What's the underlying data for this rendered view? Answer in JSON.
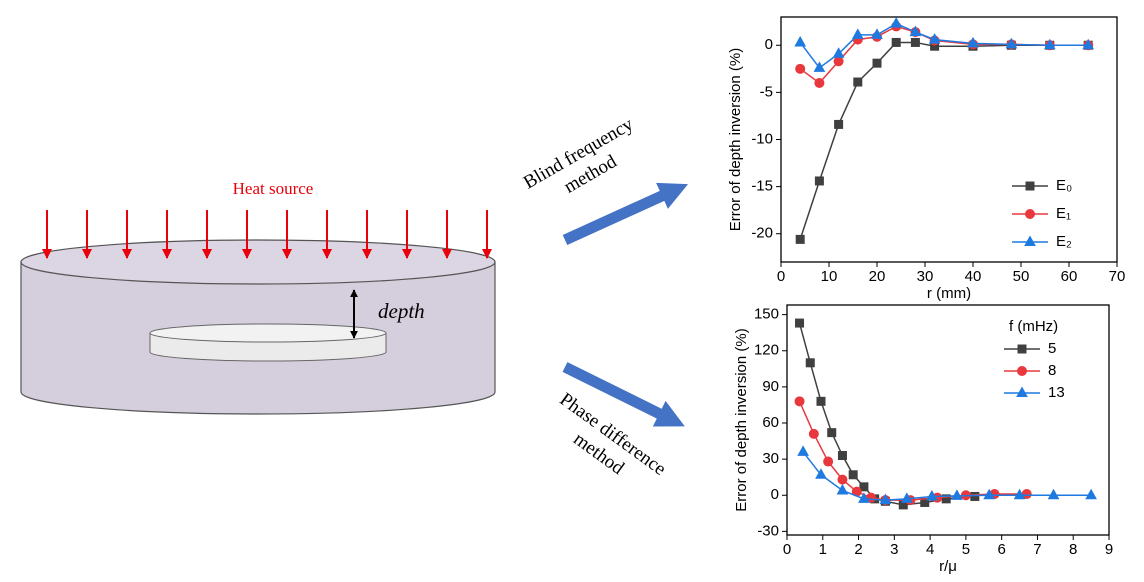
{
  "diagram": {
    "heat_source": "Heat source",
    "depth": "depth",
    "method_1": [
      "Blind frequency",
      "method"
    ],
    "method_2": [
      "Phase difference",
      "method"
    ]
  },
  "chart_data": [
    {
      "type": "line",
      "ylabel": "Error of depth inversion (%)",
      "xlabel": "r (mm)",
      "xlim": [
        0,
        70
      ],
      "xticks": [
        0,
        10,
        20,
        30,
        40,
        50,
        60,
        70
      ],
      "ylim": [
        -23,
        3
      ],
      "yticks": [
        -20,
        -15,
        -10,
        -5,
        0
      ],
      "legend": "lower right",
      "series": [
        {
          "name": "E₀",
          "color": "#404040",
          "marker": "square",
          "x": [
            4,
            8,
            12,
            16,
            20,
            24,
            28,
            32,
            40,
            48,
            56,
            64
          ],
          "values": [
            -20.6,
            -14.4,
            -8.4,
            -3.9,
            -1.9,
            0.3,
            0.3,
            -0.1,
            -0.1,
            0,
            0,
            0
          ]
        },
        {
          "name": "E₁",
          "color": "#e8383d",
          "marker": "circle",
          "x": [
            4,
            8,
            12,
            16,
            20,
            24,
            28,
            32,
            40,
            48,
            56,
            64
          ],
          "values": [
            -2.5,
            -4.0,
            -1.7,
            0.6,
            0.9,
            2.0,
            1.4,
            0.5,
            0.1,
            0.1,
            0,
            0
          ]
        },
        {
          "name": "E₂",
          "color": "#1f7ae0",
          "marker": "triangle",
          "x": [
            4,
            8,
            12,
            16,
            20,
            24,
            28,
            32,
            40,
            48,
            56,
            64
          ],
          "values": [
            0.3,
            -2.4,
            -0.9,
            1.1,
            1.1,
            2.3,
            1.4,
            0.6,
            0.2,
            0.1,
            0,
            0
          ]
        }
      ]
    },
    {
      "type": "line",
      "ylabel": "Error of depth inversion (%)",
      "xlabel": "r/μ",
      "xlim": [
        0,
        9
      ],
      "xticks": [
        0,
        1,
        2,
        3,
        4,
        5,
        6,
        7,
        8,
        9
      ],
      "ylim": [
        -33,
        158
      ],
      "yticks": [
        -30,
        0,
        30,
        60,
        90,
        120,
        150
      ],
      "legend": "upper right",
      "legend_title": "f (mHz)",
      "series": [
        {
          "name": "5",
          "color": "#404040",
          "marker": "square",
          "x": [
            0.35,
            0.65,
            0.95,
            1.25,
            1.55,
            1.85,
            2.15,
            2.45,
            2.75,
            3.25,
            3.85,
            4.45,
            5.25
          ],
          "values": [
            143,
            110,
            78,
            52,
            33,
            17,
            7,
            -3,
            -5,
            -8,
            -6,
            -3,
            -1
          ]
        },
        {
          "name": "8",
          "color": "#e8383d",
          "marker": "circle",
          "x": [
            0.35,
            0.75,
            1.15,
            1.55,
            1.95,
            2.35,
            2.75,
            3.45,
            4.2,
            5.0,
            5.8,
            6.7
          ],
          "values": [
            78,
            51,
            28,
            13,
            3,
            -2,
            -4,
            -4,
            -2,
            0,
            1,
            1
          ]
        },
        {
          "name": "13",
          "color": "#1f7ae0",
          "marker": "triangle",
          "x": [
            0.45,
            0.95,
            1.55,
            2.15,
            2.75,
            3.35,
            4.05,
            4.75,
            5.65,
            6.5,
            7.45,
            8.5
          ],
          "values": [
            36,
            17,
            4,
            -3,
            -4,
            -3,
            -1,
            -0.5,
            0,
            0,
            0,
            0
          ]
        }
      ]
    }
  ]
}
